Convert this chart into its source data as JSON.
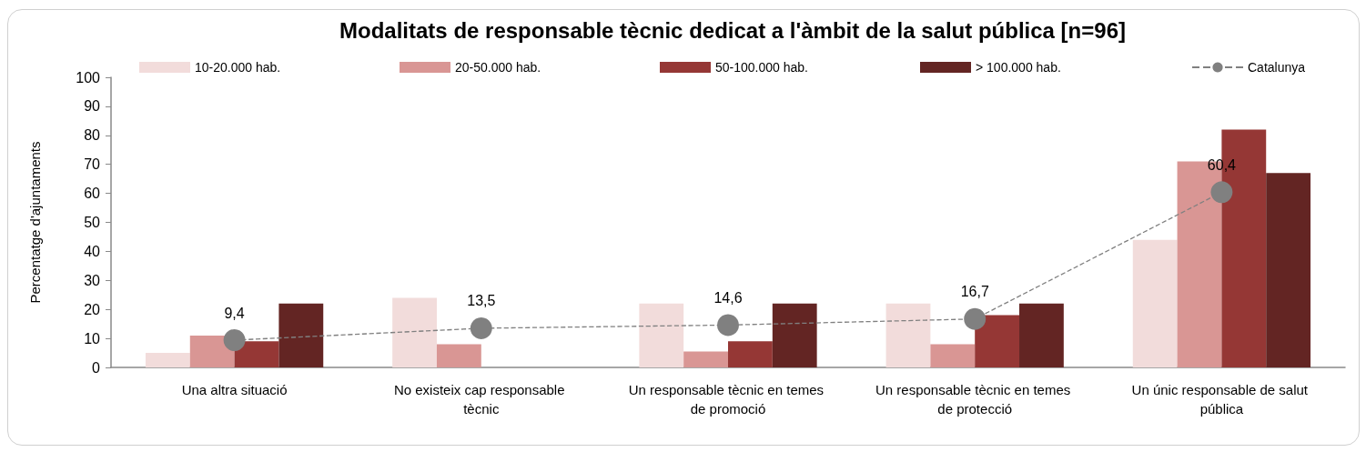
{
  "chart_data": {
    "type": "bar",
    "title": "Modalitats de responsable tècnic dedicat a l'àmbit de la salut pública [n=96]",
    "ylabel": "Percentatge d'ajuntaments",
    "categories": [
      "Una altra situació",
      "No existeix cap responsable tècnic",
      "Un responsable tècnic en temes de promoció",
      "Un responsable tècnic en temes de protecció",
      "Un únic responsable de salut pública"
    ],
    "series": [
      {
        "name": "10-20.000 hab.",
        "color": "#f2dcdb",
        "values": [
          5,
          24,
          22,
          22,
          44
        ]
      },
      {
        "name": "20-50.000 hab.",
        "color": "#d99694",
        "values": [
          11,
          8,
          5.5,
          8,
          71
        ]
      },
      {
        "name": "50-100.000 hab.",
        "color": "#953735",
        "values": [
          9,
          0,
          9,
          18,
          82
        ]
      },
      {
        "name": "> 100.000 hab.",
        "color": "#632523",
        "values": [
          22,
          0,
          22,
          22,
          67
        ]
      },
      {
        "name": "Catalunya",
        "type": "line",
        "color": "#808080",
        "values": [
          9.4,
          13.5,
          14.6,
          16.7,
          60.4
        ],
        "value_labels": [
          "9,4",
          "13,5",
          "14,6",
          "16,7",
          "60,4"
        ]
      }
    ],
    "ylim": [
      0,
      100
    ],
    "yticks": [
      0,
      10,
      20,
      30,
      40,
      50,
      60,
      70,
      80,
      90,
      100
    ],
    "legend": "top",
    "marker": "circle",
    "line_style": "dashed"
  }
}
